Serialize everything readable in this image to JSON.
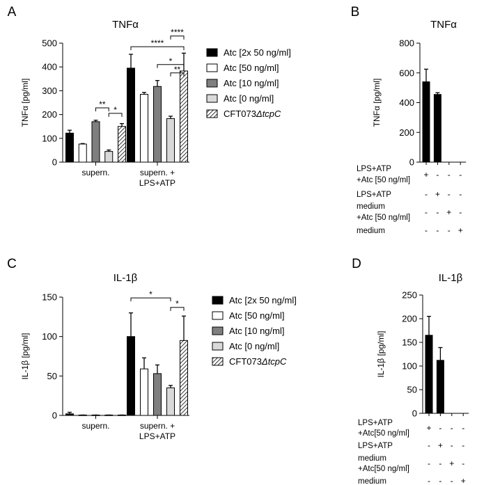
{
  "colors": {
    "black": "#000000",
    "white": "#ffffff",
    "dark_gray": "#7f7f7f",
    "light_gray": "#d9d9d9"
  },
  "chart_data": [
    {
      "id": "A",
      "panel_label": "A",
      "type": "bar",
      "title": "TNFα",
      "ylabel": "TNFα [pg/ml]",
      "ylim": [
        0,
        500
      ],
      "yticks": [
        0,
        100,
        200,
        300,
        400,
        500
      ],
      "categories": [
        "supern.",
        "supern. + LPS+ATP"
      ],
      "category_lines": [
        [
          "supern."
        ],
        [
          "supern. +",
          "LPS+ATP"
        ]
      ],
      "series": [
        {
          "name": "Atc [2x 50 ng/ml]",
          "fill": "black",
          "values": [
            122,
            395
          ],
          "errors": [
            12,
            58
          ]
        },
        {
          "name": "Atc [50 ng/ml]",
          "fill": "white",
          "values": [
            76,
            285
          ],
          "errors": [
            2,
            8
          ]
        },
        {
          "name": "Atc [10 ng/ml]",
          "fill": "dark_gray",
          "values": [
            170,
            318
          ],
          "errors": [
            6,
            25
          ]
        },
        {
          "name": "Atc [0 ng/ml]",
          "fill": "light_gray",
          "values": [
            45,
            183
          ],
          "errors": [
            6,
            10
          ]
        },
        {
          "name": "CFT073",
          "name_italic": "ΔtcpC",
          "fill": "hatch",
          "values": [
            150,
            383
          ],
          "errors": [
            12,
            75
          ]
        }
      ],
      "significance": [
        {
          "group": 0,
          "from": 2,
          "to": 3,
          "label": "**",
          "y": 228
        },
        {
          "group": 0,
          "from": 3,
          "to": 4,
          "label": "*",
          "y": 205
        },
        {
          "group": 1,
          "from": 0,
          "to": 4,
          "label": "****",
          "y": 485
        },
        {
          "group": 1,
          "from": 3,
          "to": 4,
          "label": "****",
          "y": 530
        },
        {
          "group": 1,
          "from": 2,
          "to": 4,
          "label": "*",
          "y": 410
        },
        {
          "group": 1,
          "from": 3,
          "to": 4,
          "label": "**",
          "y": 375
        }
      ]
    },
    {
      "id": "B",
      "panel_label": "B",
      "type": "bar",
      "title": "TNFα",
      "ylabel": "TNFα [pg/ml]",
      "ylim": [
        0,
        800
      ],
      "yticks": [
        0,
        200,
        400,
        600,
        800
      ],
      "values": [
        540,
        455,
        0,
        0
      ],
      "errors": [
        85,
        12,
        0,
        0
      ],
      "condition_rows": [
        {
          "lines": [
            "LPS+ATP",
            "+Atc [50 ng/ml]"
          ],
          "marks": [
            "+",
            "-",
            "-",
            "-"
          ]
        },
        {
          "lines": [
            "LPS+ATP"
          ],
          "marks": [
            "-",
            "+",
            "-",
            "-"
          ]
        },
        {
          "lines": [
            "medium",
            "+Atc [50 ng/ml]"
          ],
          "marks": [
            "-",
            "-",
            "+",
            "-"
          ]
        },
        {
          "lines": [
            "medium"
          ],
          "marks": [
            "-",
            "-",
            "-",
            "+"
          ]
        }
      ]
    },
    {
      "id": "C",
      "panel_label": "C",
      "type": "bar",
      "title": "IL-1β",
      "ylabel": "IL-1β [pg/ml]",
      "ylim": [
        0,
        150
      ],
      "yticks": [
        0,
        50,
        100,
        150
      ],
      "categories": [
        "supern.",
        "supern. + LPS+ATP"
      ],
      "category_lines": [
        [
          "supern."
        ],
        [
          "supern. +",
          "LPS+ATP"
        ]
      ],
      "series": [
        {
          "name": "Atc [2x 50 ng/ml]",
          "fill": "black",
          "values": [
            2,
            100
          ],
          "errors": [
            2,
            30
          ]
        },
        {
          "name": "Atc [50 ng/ml]",
          "fill": "white",
          "values": [
            0.5,
            59
          ],
          "errors": [
            0,
            14
          ]
        },
        {
          "name": "Atc [10 ng/ml]",
          "fill": "dark_gray",
          "values": [
            0.5,
            53
          ],
          "errors": [
            0,
            11
          ]
        },
        {
          "name": "Atc [0 ng/ml]",
          "fill": "light_gray",
          "values": [
            0.5,
            35
          ],
          "errors": [
            0,
            3
          ]
        },
        {
          "name": "CFT073",
          "name_italic": "ΔtcpC",
          "fill": "hatch",
          "values": [
            0.5,
            95
          ],
          "errors": [
            0,
            31
          ]
        }
      ],
      "significance": [
        {
          "group": 1,
          "from": 0,
          "to": 3,
          "label": "*",
          "y": 149
        },
        {
          "group": 1,
          "from": 3,
          "to": 4,
          "label": "*",
          "y": 137
        }
      ]
    },
    {
      "id": "D",
      "panel_label": "D",
      "type": "bar",
      "title": "IL-1β",
      "ylabel": "IL-1β [pg/ml]",
      "ylim": [
        0,
        250
      ],
      "yticks": [
        0,
        50,
        100,
        150,
        200,
        250
      ],
      "values": [
        165,
        112,
        0,
        0
      ],
      "errors": [
        40,
        27,
        0,
        0
      ],
      "condition_rows": [
        {
          "lines": [
            "LPS+ATP",
            "+Atc[50 ng/ml]"
          ],
          "marks": [
            "+",
            "-",
            "-",
            "-"
          ]
        },
        {
          "lines": [
            "LPS+ATP"
          ],
          "marks": [
            "-",
            "+",
            "-",
            "-"
          ]
        },
        {
          "lines": [
            "medium",
            "+Atc[50 ng/ml]"
          ],
          "marks": [
            "-",
            "-",
            "+",
            "-"
          ]
        },
        {
          "lines": [
            "medium"
          ],
          "marks": [
            "-",
            "-",
            "-",
            "+"
          ]
        }
      ]
    }
  ]
}
